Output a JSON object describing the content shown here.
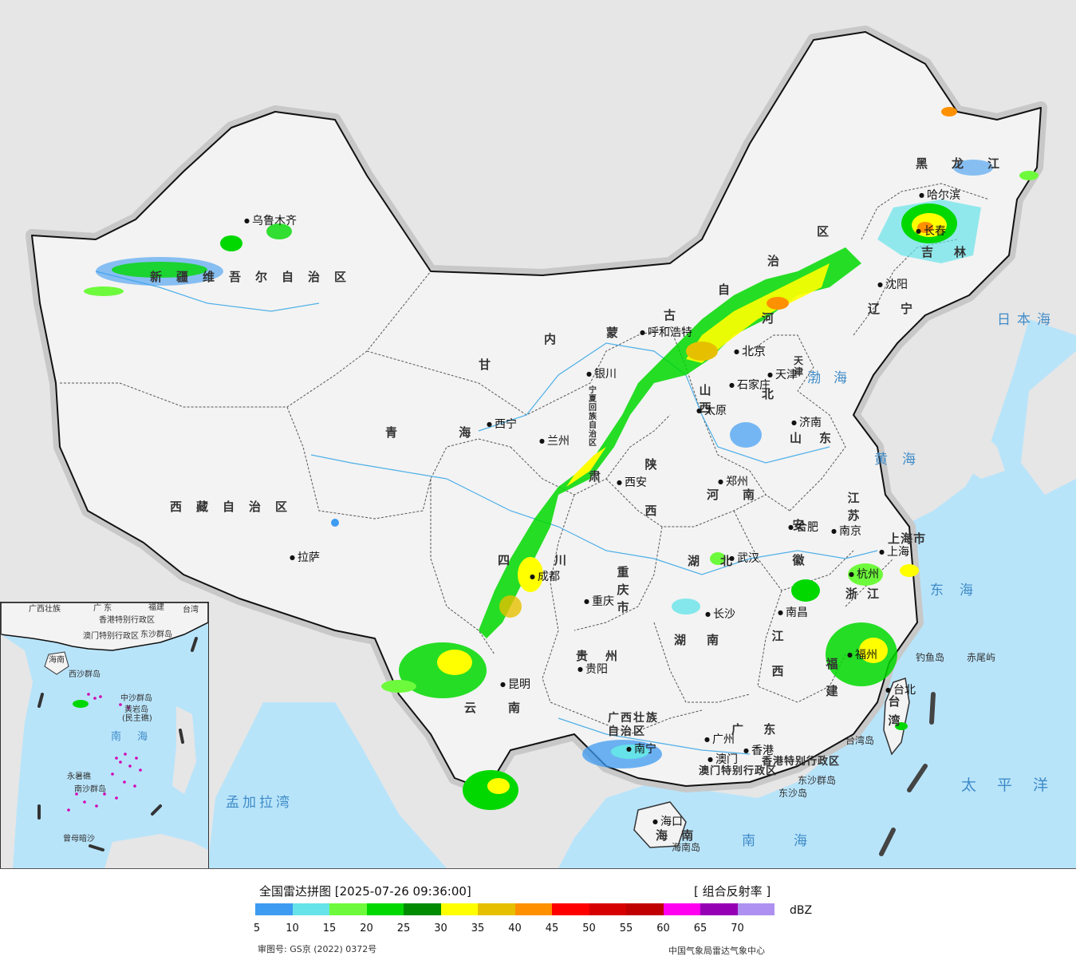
{
  "map": {
    "provinces": [
      {
        "id": "xinjiang",
        "text": "新疆维吾尔自治区"
      },
      {
        "id": "xizang",
        "text": "西藏自治区"
      },
      {
        "id": "qinghai",
        "text": "青 海"
      },
      {
        "id": "gansu",
        "text": "甘"
      },
      {
        "id": "gansu2",
        "text": "肃"
      },
      {
        "id": "neimenggu1",
        "text": "内"
      },
      {
        "id": "neimenggu2",
        "text": "蒙"
      },
      {
        "id": "neimenggu3",
        "text": "古"
      },
      {
        "id": "neimenggu4",
        "text": "自"
      },
      {
        "id": "neimenggu5",
        "text": "治"
      },
      {
        "id": "neimenggu6",
        "text": "区"
      },
      {
        "id": "heilongjiang",
        "text": "黑龙江"
      },
      {
        "id": "jilin",
        "text": "吉林"
      },
      {
        "id": "liaoning",
        "text": "辽宁"
      },
      {
        "id": "hebei",
        "text": "北"
      },
      {
        "id": "hebei2",
        "text": "河"
      },
      {
        "id": "shanxi",
        "text": "山西"
      },
      {
        "id": "shandong",
        "text": "山东"
      },
      {
        "id": "henan",
        "text": "河南"
      },
      {
        "id": "shaanxi",
        "text": "陕西"
      },
      {
        "id": "sichuan",
        "text": "四川"
      },
      {
        "id": "chongqing",
        "text": "重庆市"
      },
      {
        "id": "hubei",
        "text": "湖北"
      },
      {
        "id": "hunan",
        "text": "湖南"
      },
      {
        "id": "anhui",
        "text": "安徽"
      },
      {
        "id": "jiangsu",
        "text": "江苏"
      },
      {
        "id": "zhejiang",
        "text": "浙江"
      },
      {
        "id": "jiangxi",
        "text": "江西"
      },
      {
        "id": "fujian",
        "text": "福建"
      },
      {
        "id": "guizhou",
        "text": "贵州"
      },
      {
        "id": "yunnan",
        "text": "云南"
      },
      {
        "id": "guangxi",
        "text": "广西壮族自治区"
      },
      {
        "id": "guangdong",
        "text": "广 东"
      },
      {
        "id": "hainan",
        "text": "海 南"
      },
      {
        "id": "taiwan",
        "text": "台湾"
      },
      {
        "id": "shanghai",
        "text": "上海市"
      },
      {
        "id": "tianjin",
        "text": "天津"
      },
      {
        "id": "ningxia",
        "text": "宁夏回族自治区"
      },
      {
        "id": "hongkong",
        "text": "香港特别行政区"
      },
      {
        "id": "macau",
        "text": "澳门特别行政区"
      }
    ],
    "cities": [
      {
        "id": "urumqi",
        "text": "乌鲁木齐"
      },
      {
        "id": "lhasa",
        "text": "拉萨"
      },
      {
        "id": "xining",
        "text": "西宁"
      },
      {
        "id": "lanzhou",
        "text": "兰州"
      },
      {
        "id": "yinchuan",
        "text": "银川"
      },
      {
        "id": "hohhot",
        "text": "呼和浩特"
      },
      {
        "id": "beijing",
        "text": "北京"
      },
      {
        "id": "tianjin",
        "text": "天津"
      },
      {
        "id": "shijiazhuang",
        "text": "石家庄"
      },
      {
        "id": "taiyuan",
        "text": "太原"
      },
      {
        "id": "jinan",
        "text": "济南"
      },
      {
        "id": "xian",
        "text": "西安"
      },
      {
        "id": "zhengzhou",
        "text": "郑州"
      },
      {
        "id": "hefei",
        "text": "合肥"
      },
      {
        "id": "nanjing",
        "text": "南京"
      },
      {
        "id": "shanghai",
        "text": "上海"
      },
      {
        "id": "hangzhou",
        "text": "杭州"
      },
      {
        "id": "wuhan",
        "text": "武汉"
      },
      {
        "id": "chengdu",
        "text": "成都"
      },
      {
        "id": "chongqing",
        "text": "重庆"
      },
      {
        "id": "changsha",
        "text": "长沙"
      },
      {
        "id": "nanchang",
        "text": "南昌"
      },
      {
        "id": "fuzhou",
        "text": "福州"
      },
      {
        "id": "guiyang",
        "text": "贵阳"
      },
      {
        "id": "kunming",
        "text": "昆明"
      },
      {
        "id": "nanning",
        "text": "南宁"
      },
      {
        "id": "guangzhou",
        "text": "广州"
      },
      {
        "id": "hongkong",
        "text": "香港"
      },
      {
        "id": "macau",
        "text": "澳门"
      },
      {
        "id": "haikou",
        "text": "海口"
      },
      {
        "id": "taibei",
        "text": "台北"
      },
      {
        "id": "shenyang",
        "text": "沈阳"
      },
      {
        "id": "changchun",
        "text": "长春"
      },
      {
        "id": "harbin",
        "text": "哈尔滨"
      }
    ],
    "seas": [
      {
        "id": "bohai",
        "text": "渤海"
      },
      {
        "id": "huanghai",
        "text": "黄海"
      },
      {
        "id": "donghai",
        "text": "东海"
      },
      {
        "id": "nanhai",
        "text": "南海"
      },
      {
        "id": "riben",
        "text": "日本海"
      },
      {
        "id": "taipingyang",
        "text": "太平洋"
      },
      {
        "id": "mengjiala",
        "text": "孟加拉湾"
      }
    ],
    "islands": [
      {
        "id": "diaoyu",
        "text": "钓鱼岛"
      },
      {
        "id": "chiwei",
        "text": "赤尾屿"
      },
      {
        "id": "taiwandao",
        "text": "台湾岛"
      },
      {
        "id": "dongsha_qd",
        "text": "东沙群岛"
      },
      {
        "id": "dongsha_d",
        "text": "东沙岛"
      },
      {
        "id": "hainandao",
        "text": "海南岛"
      }
    ],
    "inset_labels": [
      {
        "id": "i_gd",
        "text": "广 东"
      },
      {
        "id": "i_fj",
        "text": "福建"
      },
      {
        "id": "i_tw",
        "text": "台湾"
      },
      {
        "id": "i_gx",
        "text": "广西壮族"
      },
      {
        "id": "i_hk",
        "text": "香港特别行政区"
      },
      {
        "id": "i_mo",
        "text": "澳门特别行政区"
      },
      {
        "id": "i_dsqd",
        "text": "东沙群岛"
      },
      {
        "id": "i_hainan",
        "text": "海南"
      },
      {
        "id": "i_xisha",
        "text": "西沙群岛"
      },
      {
        "id": "i_zhongsha",
        "text": "中沙群岛"
      },
      {
        "id": "i_huangyan",
        "text": "黄岩岛"
      },
      {
        "id": "i_minzhu",
        "text": "(民主礁)"
      },
      {
        "id": "i_nanhai",
        "text": "南 海"
      },
      {
        "id": "i_yongshu",
        "text": "永暑礁"
      },
      {
        "id": "i_nansha",
        "text": "南沙群岛"
      },
      {
        "id": "i_zengmu",
        "text": "曾母暗沙"
      }
    ]
  },
  "legend": {
    "title": "全国雷达拼图 [2025-07-26 09:36:00]",
    "product": "[ 组合反射率 ]",
    "unit": "dBZ",
    "colors": [
      "#3d9bf2",
      "#66e3e8",
      "#6efa3c",
      "#00d800",
      "#008c00",
      "#ffff00",
      "#e6c000",
      "#ff9000",
      "#ff0000",
      "#d60000",
      "#c00000",
      "#ff00f0",
      "#9600b4",
      "#ae90f0"
    ],
    "ticks": [
      "5",
      "10",
      "15",
      "20",
      "25",
      "30",
      "35",
      "40",
      "45",
      "50",
      "55",
      "60",
      "65",
      "70"
    ],
    "approval": "审图号: GS京 (2022) 0372号",
    "agency": "中国气象局雷达气象中心"
  }
}
